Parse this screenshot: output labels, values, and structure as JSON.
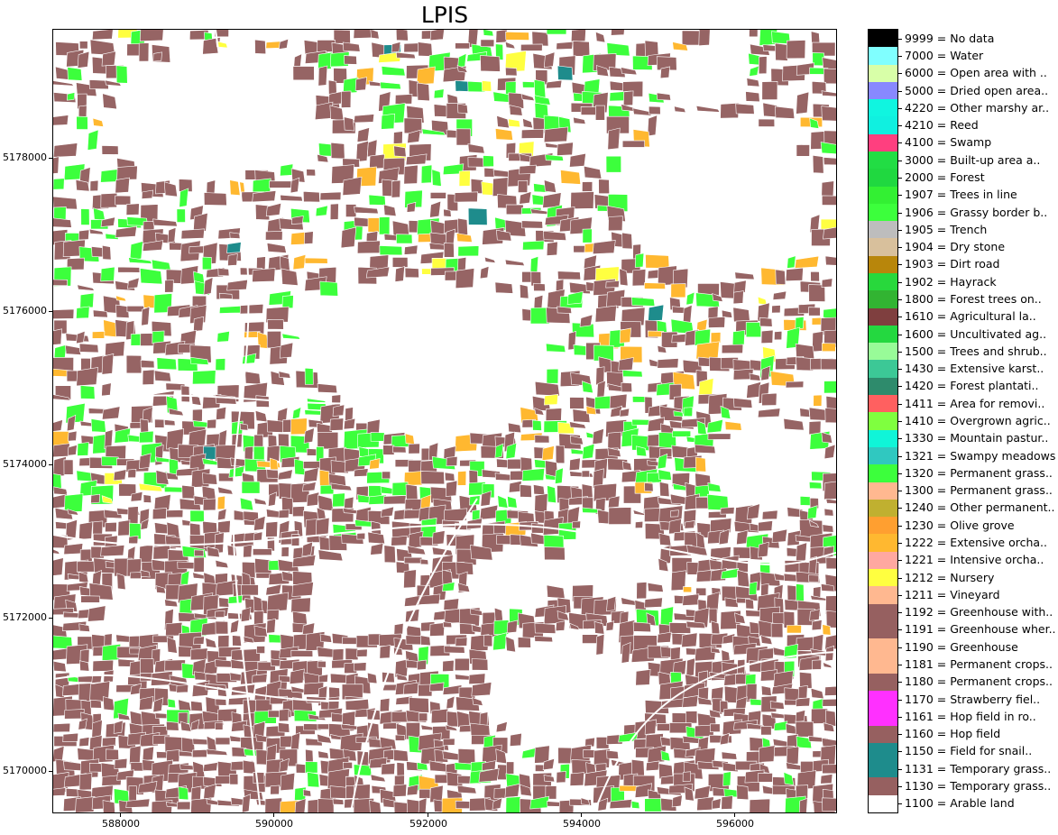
{
  "title": "LPIS",
  "axes": {
    "x_ticks": [
      "588000",
      "590000",
      "592000",
      "594000",
      "596000"
    ],
    "y_ticks": [
      "5178000",
      "5176000",
      "5174000",
      "5172000",
      "5170000"
    ]
  },
  "legend": [
    {
      "label": "9999 = No data",
      "color": "#000000"
    },
    {
      "label": "7000 = Water",
      "color": "#80ffff"
    },
    {
      "label": "6000 = Open area with ..",
      "color": "#d8ffa8"
    },
    {
      "label": "5000 = Dried open area..",
      "color": "#8888ff"
    },
    {
      "label": "4220 = Other marshy ar..",
      "color": "#10f5e0"
    },
    {
      "label": "4210 = Reed",
      "color": "#10f0e0"
    },
    {
      "label": "4100 = Swamp",
      "color": "#ff3f7f"
    },
    {
      "label": "3000 = Built-up area a..",
      "color": "#22dd44"
    },
    {
      "label": "2000 = Forest",
      "color": "#20d840"
    },
    {
      "label": "1907 = Trees in line",
      "color": "#33f033"
    },
    {
      "label": "1906 = Grassy border b..",
      "color": "#3cff3c"
    },
    {
      "label": "1905 = Trench",
      "color": "#bdbdbd"
    },
    {
      "label": "1904 = Dry stone",
      "color": "#d8c09c"
    },
    {
      "label": "1903 = Dirt road",
      "color": "#b8860b"
    },
    {
      "label": "1902 = Hayrack",
      "color": "#28d83c"
    },
    {
      "label": "1800 = Forest trees on..",
      "color": "#32b432"
    },
    {
      "label": "1610 = Agricultural la..",
      "color": "#7f3f3f"
    },
    {
      "label": "1600 = Uncultivated ag..",
      "color": "#24d840"
    },
    {
      "label": "1500 = Trees and shrub..",
      "color": "#98fb98"
    },
    {
      "label": "1430 = Extensive karst..",
      "color": "#3cc896"
    },
    {
      "label": "1420 = Forest plantati..",
      "color": "#2e8b6c"
    },
    {
      "label": "1411 = Area for removi..",
      "color": "#ff6060"
    },
    {
      "label": "1410 = Overgrown agric..",
      "color": "#7fff3f"
    },
    {
      "label": "1330 = Mountain pastur..",
      "color": "#10f5d8"
    },
    {
      "label": "1321 = Swampy meadows",
      "color": "#30c8c0"
    },
    {
      "label": "1320 = Permanent grass..",
      "color": "#3cff3c"
    },
    {
      "label": "1300 = Permanent grass..",
      "color": "#ffb890"
    },
    {
      "label": "1240 = Other permanent..",
      "color": "#c0b030"
    },
    {
      "label": "1230 = Olive grove",
      "color": "#ff9f30"
    },
    {
      "label": "1222 = Extensive orcha..",
      "color": "#ffb830"
    },
    {
      "label": "1221 = Intensive orcha..",
      "color": "#ffa8a0"
    },
    {
      "label": "1212 = Nursery",
      "color": "#ffff40"
    },
    {
      "label": "1211 = Vineyard",
      "color": "#ffb890"
    },
    {
      "label": "1192 = Greenhouse with..",
      "color": "#966060"
    },
    {
      "label": "1191 = Greenhouse wher..",
      "color": "#966060"
    },
    {
      "label": "1190 = Greenhouse",
      "color": "#ffb890"
    },
    {
      "label": "1181 = Permanent crops..",
      "color": "#ffb890"
    },
    {
      "label": "1180 = Permanent crops..",
      "color": "#966060"
    },
    {
      "label": "1170 = Strawberry fiel..",
      "color": "#ff30ff"
    },
    {
      "label": "1161 = Hop field in ro..",
      "color": "#ff30ff"
    },
    {
      "label": "1160 = Hop field",
      "color": "#966060"
    },
    {
      "label": "1150 = Field for snail..",
      "color": "#1e8c8c"
    },
    {
      "label": "1131 = Temporary grass..",
      "color": "#1e8c8c"
    },
    {
      "label": "1130 = Temporary grass..",
      "color": "#966060"
    },
    {
      "label": "1100 = Arable land",
      "color": "#ffffff"
    }
  ],
  "colors": {
    "arable": "#966464",
    "grass": "#3cff3c",
    "orchard": "#ffb830",
    "vineyard": "#ffff40",
    "teal": "#1e8c8c"
  }
}
